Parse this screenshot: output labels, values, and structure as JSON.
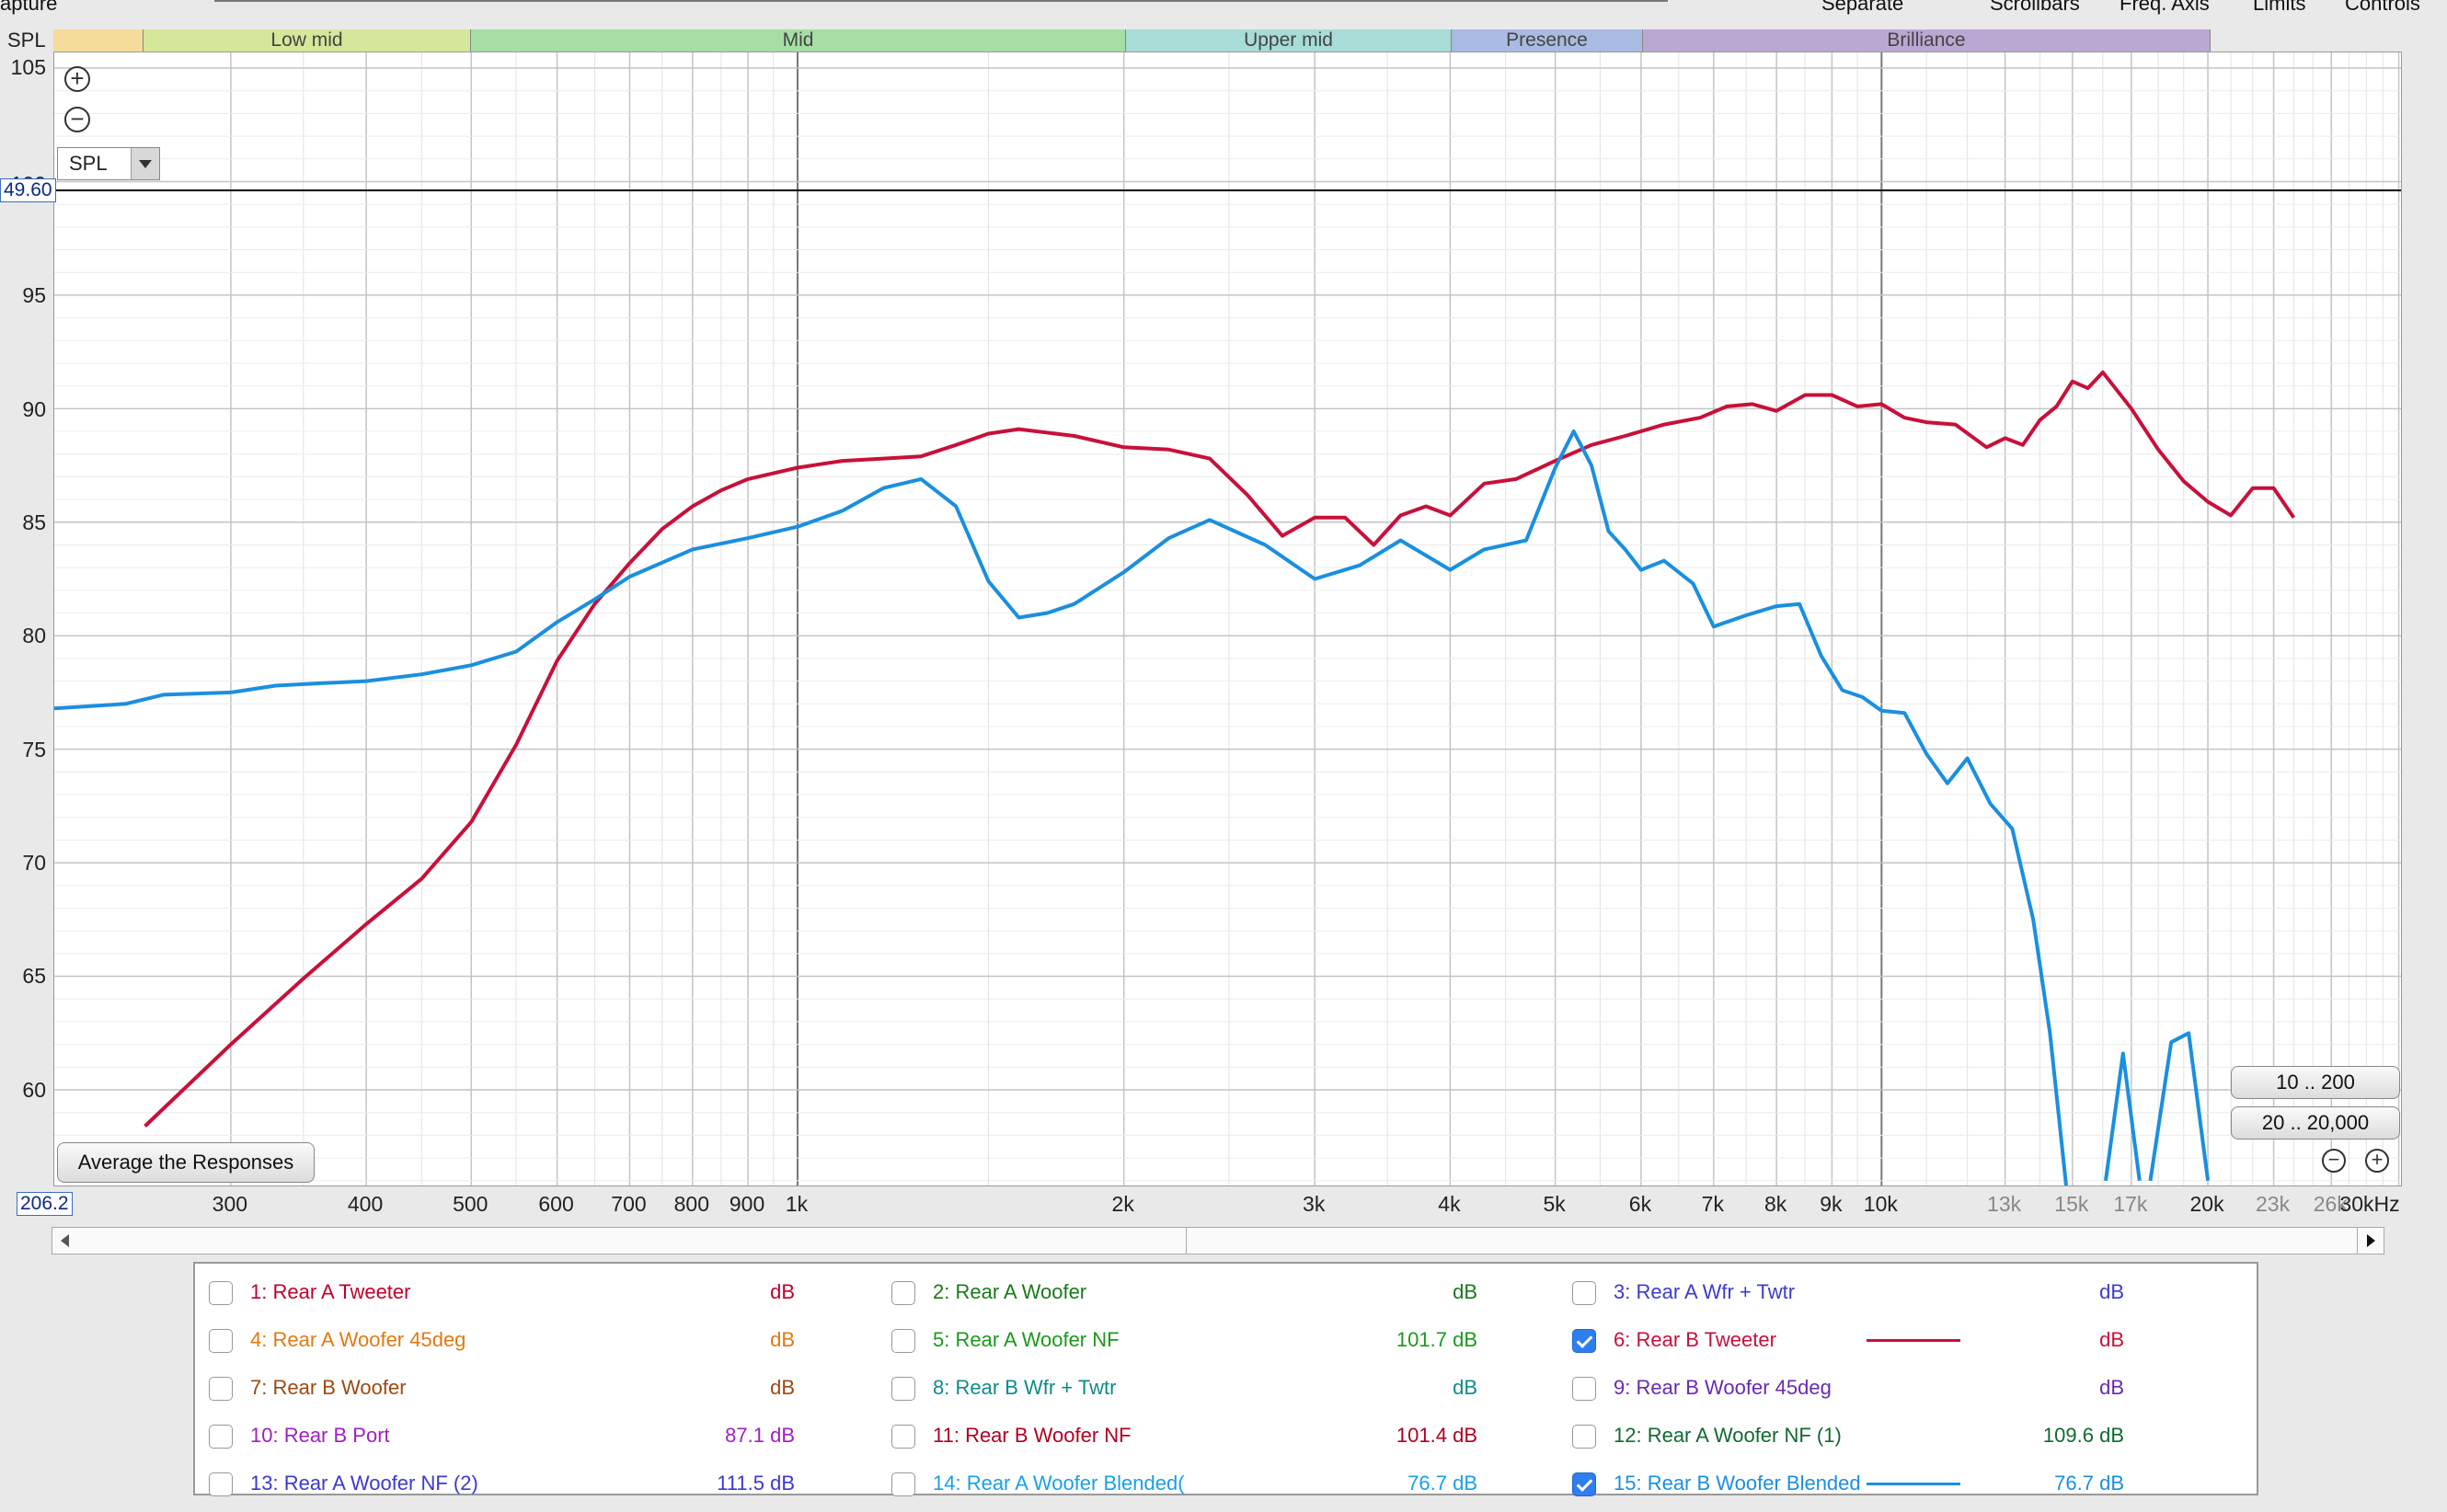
{
  "top_menu": [
    "apture",
    "Separate",
    "Scrollbars",
    "Freq. Axis",
    "Limits",
    "Controls"
  ],
  "spl_label": "SPL",
  "bands": [
    {
      "label": "",
      "color": "#f5dc9a"
    },
    {
      "label": "Low mid",
      "color": "#d4e79a"
    },
    {
      "label": "Mid",
      "color": "#a6dea6"
    },
    {
      "label": "Upper mid",
      "color": "#a8dcd6"
    },
    {
      "label": "Presence",
      "color": "#a9bbe0"
    },
    {
      "label": "Brilliance",
      "color": "#baa8d2"
    }
  ],
  "y_ticks": [
    "105",
    "95",
    "90",
    "85",
    "80",
    "75",
    "70",
    "65",
    "60"
  ],
  "y_hidden_tick": "100",
  "y_top_value": "49.60",
  "x_left_value": "206.2",
  "x_ticks": [
    {
      "label": "300",
      "f": 300,
      "grey": false
    },
    {
      "label": "400",
      "f": 400,
      "grey": false
    },
    {
      "label": "500",
      "f": 500,
      "grey": false
    },
    {
      "label": "600",
      "f": 600,
      "grey": false
    },
    {
      "label": "700",
      "f": 700,
      "grey": false
    },
    {
      "label": "800",
      "f": 800,
      "grey": false
    },
    {
      "label": "900",
      "f": 900,
      "grey": false
    },
    {
      "label": "1k",
      "f": 1000,
      "grey": false
    },
    {
      "label": "2k",
      "f": 2000,
      "grey": false
    },
    {
      "label": "3k",
      "f": 3000,
      "grey": false
    },
    {
      "label": "4k",
      "f": 4000,
      "grey": false
    },
    {
      "label": "5k",
      "f": 5000,
      "grey": false
    },
    {
      "label": "6k",
      "f": 6000,
      "grey": false
    },
    {
      "label": "7k",
      "f": 7000,
      "grey": false
    },
    {
      "label": "8k",
      "f": 8000,
      "grey": false
    },
    {
      "label": "9k",
      "f": 9000,
      "grey": false
    },
    {
      "label": "10k",
      "f": 10000,
      "grey": false
    },
    {
      "label": "13k",
      "f": 13000,
      "grey": true
    },
    {
      "label": "15k",
      "f": 15000,
      "grey": true
    },
    {
      "label": "17k",
      "f": 17000,
      "grey": true
    },
    {
      "label": "20k",
      "f": 20000,
      "grey": false
    },
    {
      "label": "23k",
      "f": 23000,
      "grey": true
    },
    {
      "label": "26k",
      "f": 26000,
      "grey": true
    },
    {
      "label": "30kHz",
      "f": 30000,
      "grey": false
    }
  ],
  "controls": {
    "zoom_in_icon": "plus-circle-icon",
    "zoom_out_icon": "minus-circle-icon",
    "dropdown_value": "SPL",
    "average_button": "Average the Responses",
    "range_btn_1": "10 .. 200",
    "range_btn_2": "20 .. 20,000"
  },
  "legend": [
    {
      "label": "1: Rear A Tweeter",
      "value": "dB",
      "color": "#c0002a",
      "checked": false
    },
    {
      "label": "2: Rear A Woofer",
      "value": "dB",
      "color": "#1a7a1a",
      "checked": false
    },
    {
      "label": "3: Rear A Wfr + Twtr",
      "value": "dB",
      "color": "#3b3bd0",
      "checked": false
    },
    {
      "label": "4: Rear A Woofer 45deg",
      "value": "dB",
      "color": "#e07a10",
      "checked": false
    },
    {
      "label": "5: Rear A Woofer NF",
      "value": "101.7 dB",
      "color": "#1a9a1a",
      "checked": false
    },
    {
      "label": "6: Rear B Tweeter",
      "value": "dB",
      "color": "#c8103a",
      "checked": true
    },
    {
      "label": "7: Rear B Woofer",
      "value": "dB",
      "color": "#9a4a10",
      "checked": false
    },
    {
      "label": "8: Rear B Wfr + Twtr",
      "value": "dB",
      "color": "#108a8a",
      "checked": false
    },
    {
      "label": "9: Rear B Woofer 45deg",
      "value": "dB",
      "color": "#6a2ab0",
      "checked": false
    },
    {
      "label": "10: Rear B Port",
      "value": "87.1 dB",
      "color": "#a020c0",
      "checked": false
    },
    {
      "label": "11: Rear B Woofer NF",
      "value": "101.4 dB",
      "color": "#b00020",
      "checked": false
    },
    {
      "label": "12: Rear A Woofer NF (1)",
      "value": "109.6 dB",
      "color": "#106a30",
      "checked": false
    },
    {
      "label": "13: Rear A Woofer NF (2)",
      "value": "111.5 dB",
      "color": "#3a3ad0",
      "checked": false
    },
    {
      "label": "14: Rear A Woofer Blended(",
      "value": "76.7 dB",
      "color": "#1aa0e8",
      "checked": false
    },
    {
      "label": "15: Rear B Woofer Blended",
      "value": "76.7 dB",
      "color": "#1a8fe0",
      "checked": true
    }
  ],
  "chart_data": {
    "type": "line",
    "xlabel": "",
    "ylabel": "SPL",
    "xscale": "log",
    "xlim": [
      206.2,
      30000
    ],
    "ylim": [
      56,
      105
    ],
    "grid": true,
    "series": [
      {
        "name": "6: Rear B Tweeter",
        "color": "#c8103a",
        "points": [
          [
            250,
            58.4
          ],
          [
            300,
            62
          ],
          [
            350,
            64.9
          ],
          [
            400,
            67.3
          ],
          [
            450,
            69.3
          ],
          [
            500,
            71.8
          ],
          [
            550,
            75.2
          ],
          [
            600,
            78.9
          ],
          [
            650,
            81.4
          ],
          [
            700,
            83.2
          ],
          [
            750,
            84.7
          ],
          [
            800,
            85.7
          ],
          [
            850,
            86.4
          ],
          [
            900,
            86.9
          ],
          [
            1000,
            87.4
          ],
          [
            1100,
            87.7
          ],
          [
            1200,
            87.8
          ],
          [
            1300,
            87.9
          ],
          [
            1400,
            88.4
          ],
          [
            1500,
            88.9
          ],
          [
            1600,
            89.1
          ],
          [
            1800,
            88.8
          ],
          [
            2000,
            88.3
          ],
          [
            2200,
            88.2
          ],
          [
            2400,
            87.8
          ],
          [
            2600,
            86.2
          ],
          [
            2800,
            84.4
          ],
          [
            3000,
            85.2
          ],
          [
            3200,
            85.2
          ],
          [
            3400,
            84
          ],
          [
            3600,
            85.3
          ],
          [
            3800,
            85.7
          ],
          [
            4000,
            85.3
          ],
          [
            4300,
            86.7
          ],
          [
            4600,
            86.9
          ],
          [
            5000,
            87.7
          ],
          [
            5400,
            88.4
          ],
          [
            5800,
            88.8
          ],
          [
            6300,
            89.3
          ],
          [
            6800,
            89.6
          ],
          [
            7200,
            90.1
          ],
          [
            7600,
            90.2
          ],
          [
            8000,
            89.9
          ],
          [
            8500,
            90.6
          ],
          [
            9000,
            90.6
          ],
          [
            9500,
            90.1
          ],
          [
            10000,
            90.2
          ],
          [
            10500,
            89.6
          ],
          [
            11000,
            89.4
          ],
          [
            11700,
            89.3
          ],
          [
            12500,
            88.3
          ],
          [
            13000,
            88.7
          ],
          [
            13500,
            88.4
          ],
          [
            14000,
            89.5
          ],
          [
            14500,
            90.1
          ],
          [
            15000,
            91.2
          ],
          [
            15500,
            90.9
          ],
          [
            16000,
            91.6
          ],
          [
            17000,
            90
          ],
          [
            18000,
            88.2
          ],
          [
            19000,
            86.8
          ],
          [
            20000,
            85.9
          ],
          [
            21000,
            85.3
          ],
          [
            22000,
            86.5
          ],
          [
            23000,
            86.5
          ],
          [
            24000,
            85.2
          ]
        ]
      },
      {
        "name": "15: Rear B Woofer Blended",
        "color": "#1a8fe0",
        "points": [
          [
            206.2,
            76.8
          ],
          [
            240,
            77
          ],
          [
            260,
            77.4
          ],
          [
            300,
            77.5
          ],
          [
            330,
            77.8
          ],
          [
            360,
            77.9
          ],
          [
            400,
            78
          ],
          [
            450,
            78.3
          ],
          [
            500,
            78.7
          ],
          [
            550,
            79.3
          ],
          [
            600,
            80.6
          ],
          [
            650,
            81.6
          ],
          [
            700,
            82.6
          ],
          [
            800,
            83.8
          ],
          [
            900,
            84.3
          ],
          [
            1000,
            84.8
          ],
          [
            1100,
            85.5
          ],
          [
            1200,
            86.5
          ],
          [
            1300,
            86.9
          ],
          [
            1400,
            85.7
          ],
          [
            1500,
            82.4
          ],
          [
            1600,
            80.8
          ],
          [
            1700,
            81
          ],
          [
            1800,
            81.4
          ],
          [
            2000,
            82.8
          ],
          [
            2200,
            84.3
          ],
          [
            2400,
            85.1
          ],
          [
            2700,
            84
          ],
          [
            3000,
            82.5
          ],
          [
            3300,
            83.1
          ],
          [
            3600,
            84.2
          ],
          [
            4000,
            82.9
          ],
          [
            4300,
            83.8
          ],
          [
            4700,
            84.2
          ],
          [
            5000,
            87.4
          ],
          [
            5200,
            89
          ],
          [
            5400,
            87.5
          ],
          [
            5600,
            84.6
          ],
          [
            5800,
            83.8
          ],
          [
            6000,
            82.9
          ],
          [
            6300,
            83.3
          ],
          [
            6700,
            82.3
          ],
          [
            7000,
            80.4
          ],
          [
            7500,
            80.9
          ],
          [
            8000,
            81.3
          ],
          [
            8400,
            81.4
          ],
          [
            8800,
            79.1
          ],
          [
            9200,
            77.6
          ],
          [
            9600,
            77.3
          ],
          [
            10000,
            76.7
          ],
          [
            10500,
            76.6
          ],
          [
            11000,
            74.8
          ],
          [
            11500,
            73.5
          ],
          [
            12000,
            74.6
          ],
          [
            12600,
            72.6
          ],
          [
            13200,
            71.5
          ],
          [
            13800,
            67.5
          ],
          [
            14300,
            62.5
          ],
          [
            14800,
            55.5
          ]
        ]
      },
      {
        "name": "15: Rear B Woofer Blended (peak 1)",
        "color": "#1a8fe0",
        "points": [
          [
            16100,
            56
          ],
          [
            16700,
            61.6
          ],
          [
            17300,
            56
          ]
        ]
      },
      {
        "name": "15: Rear B Woofer Blended (peak 2)",
        "color": "#1a8fe0",
        "points": [
          [
            17700,
            56
          ],
          [
            18500,
            62.1
          ],
          [
            19200,
            62.5
          ],
          [
            20000,
            56
          ]
        ]
      }
    ]
  }
}
